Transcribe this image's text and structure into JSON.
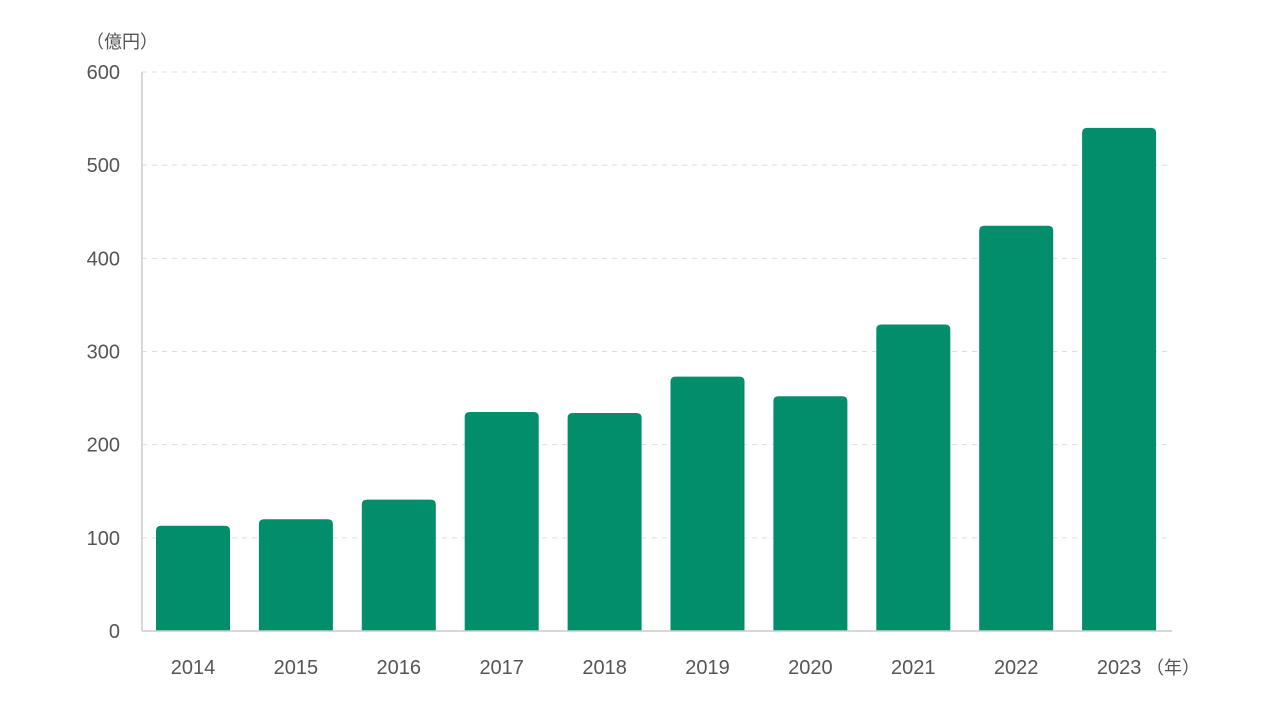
{
  "chart_data": {
    "type": "bar",
    "y_unit_label": "（億円）",
    "x_unit_label": "（年）",
    "categories": [
      "2014",
      "2015",
      "2016",
      "2017",
      "2018",
      "2019",
      "2020",
      "2021",
      "2022",
      "2023"
    ],
    "values": [
      113,
      120,
      141,
      235,
      234,
      273,
      252,
      329,
      435,
      540
    ],
    "ylim": [
      0,
      600
    ],
    "yticks": [
      0,
      100,
      200,
      300,
      400,
      500,
      600
    ],
    "grid": true,
    "legend": "none",
    "bar_color": "#038e6b"
  }
}
